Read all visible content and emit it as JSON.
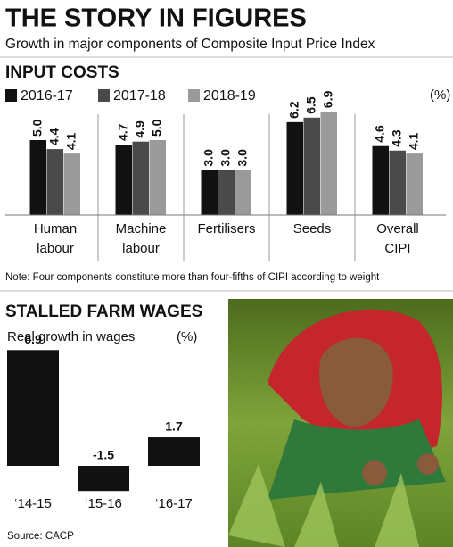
{
  "chart_data": [
    {
      "type": "bar",
      "title": "THE STORY IN FIGURES",
      "subtitle": "Growth in major components of Composite Input Price Index",
      "section": "INPUT COSTS",
      "unit": "(%)",
      "note": "Note: Four components constitute more than four-fifths of CIPI according to weight",
      "categories": [
        "Human labour",
        "Machine labour",
        "Fertilisers",
        "Seeds",
        "Overall CIPI"
      ],
      "series": [
        {
          "name": "2016-17",
          "color": "#111111",
          "values": [
            5.0,
            4.7,
            3.0,
            6.2,
            4.6
          ],
          "value_labels": [
            "5.0",
            "4.7",
            "3.0",
            "6.2",
            "4.6"
          ]
        },
        {
          "name": "2017-18",
          "color": "#4a4a4a",
          "values": [
            4.4,
            4.9,
            3.0,
            6.5,
            4.3
          ],
          "value_labels": [
            "4.4",
            "4.9",
            "3.0",
            "6.5",
            "4.3"
          ]
        },
        {
          "name": "2018-19",
          "color": "#9a9a9a",
          "values": [
            4.1,
            5.0,
            3.0,
            6.9,
            4.1
          ],
          "value_labels": [
            "4.1",
            "5.0",
            "3.0",
            "6.9",
            "4.1"
          ]
        }
      ]
    },
    {
      "type": "bar",
      "title": "STALLED FARM WAGES",
      "subtitle": "Real growth in wages",
      "unit": "(%)",
      "source": "Source: CACP",
      "categories": [
        "‘14-15",
        "‘15-16",
        "‘16-17"
      ],
      "values": [
        6.9,
        -1.5,
        1.7
      ],
      "color": "#111111"
    }
  ]
}
